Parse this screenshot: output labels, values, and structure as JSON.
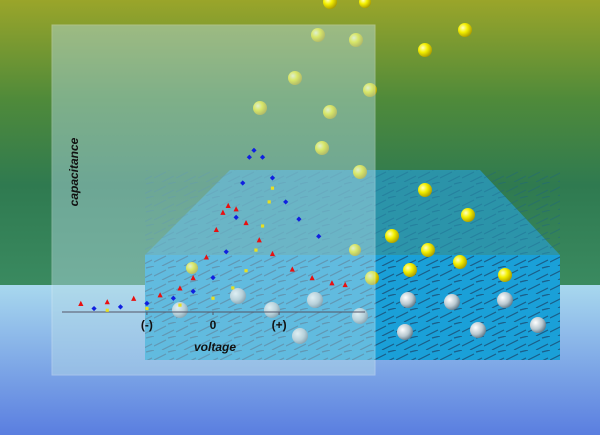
{
  "chart_data": {
    "type": "scatter",
    "x_label": "voltage",
    "y_label": "capacitance",
    "xlim": [
      -2.3,
      2.3
    ],
    "ylim": [
      0,
      1
    ],
    "xticks": [
      {
        "value": -1,
        "label": "(-)"
      },
      0,
      {
        "value": 1,
        "label": "(+)"
      }
    ],
    "series": [
      {
        "color": "#e81010",
        "marker": "triangle",
        "x": [
          -2.0,
          -1.6,
          -1.2,
          -0.8,
          -0.5,
          -0.3,
          -0.1,
          0.05,
          0.15,
          0.23,
          0.35,
          0.5,
          0.7,
          0.9,
          1.2,
          1.5,
          1.8,
          2.0
        ],
        "values": [
          0.05,
          0.06,
          0.08,
          0.1,
          0.14,
          0.2,
          0.32,
          0.48,
          0.58,
          0.62,
          0.6,
          0.52,
          0.42,
          0.34,
          0.25,
          0.2,
          0.17,
          0.16
        ]
      },
      {
        "color": "#1020e0",
        "marker": "diamond",
        "x": [
          -1.8,
          -1.4,
          -1.0,
          -0.6,
          -0.3,
          0,
          0.2,
          0.35,
          0.45,
          0.55,
          0.62,
          0.75,
          0.9,
          1.1,
          1.3,
          1.6
        ],
        "values": [
          0.02,
          0.03,
          0.05,
          0.08,
          0.12,
          0.2,
          0.35,
          0.55,
          0.75,
          0.9,
          0.94,
          0.9,
          0.78,
          0.64,
          0.54,
          0.44
        ]
      },
      {
        "color": "#e8e020",
        "marker": "square",
        "x": [
          -1.6,
          -1.0,
          -0.5,
          0,
          0.3,
          0.5,
          0.65,
          0.75,
          0.85,
          0.9
        ],
        "values": [
          0.01,
          0.02,
          0.04,
          0.08,
          0.14,
          0.24,
          0.36,
          0.5,
          0.64,
          0.72
        ]
      }
    ]
  }
}
